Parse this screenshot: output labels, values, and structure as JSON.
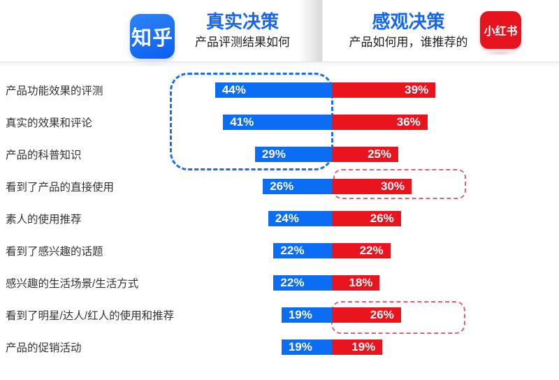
{
  "header": {
    "zhihu": {
      "logo_text": "知乎",
      "title": "真实决策",
      "subtitle": "产品评测结果如何"
    },
    "xiaohongshu": {
      "logo_text": "小红书",
      "title": "感观决策",
      "subtitle": "产品如何用，谁推荐的"
    }
  },
  "colors": {
    "zhihu_bar": "#0b6cf4",
    "xiaohongshu_bar": "#e9141d",
    "zhihu_logo": "#0b5ef0",
    "xiaohongshu_logo": "#e5141e",
    "header_title_blue": "#1566f0",
    "highlight_dashed_blue": "#1c6df2",
    "highlight_dashed_pink": "#e0607a"
  },
  "chart_data": {
    "type": "bar",
    "subtype": "bidirectional-horizontal",
    "title_left": "真实决策",
    "title_right": "感观决策",
    "value_format": "percent",
    "categories": [
      "产品功能效果的评测",
      "真实的效果和评论",
      "产品的科普知识",
      "看到了产品的直接使用",
      "素人的使用推荐",
      "看到了感兴趣的话题",
      "感兴趣的生活场景/生活方式",
      "看到了明星/达人/红人的使用和推荐",
      "产品的促销活动"
    ],
    "series": [
      {
        "name": "知乎（真实决策）",
        "side": "left",
        "color": "#0b6cf4",
        "values": [
          44,
          41,
          29,
          26,
          24,
          22,
          22,
          19,
          19
        ]
      },
      {
        "name": "小红书（感观决策）",
        "side": "right",
        "color": "#e9141d",
        "values": [
          39,
          36,
          25,
          30,
          26,
          22,
          18,
          26,
          19
        ]
      }
    ],
    "annotations": [
      {
        "name": "zhihu-top3-highlight",
        "style": "dashed-blue-rounded",
        "series": "知乎（真实决策）",
        "rows": [
          1,
          2,
          3
        ]
      },
      {
        "name": "xhs-direct-use-highlight",
        "style": "dashed-pink-rounded",
        "series": "小红书（感观决策）",
        "rows": [
          4
        ]
      },
      {
        "name": "xhs-celebrity-highlight",
        "style": "dashed-pink-rounded",
        "series": "小红书（感观决策）",
        "rows": [
          8
        ]
      }
    ]
  }
}
